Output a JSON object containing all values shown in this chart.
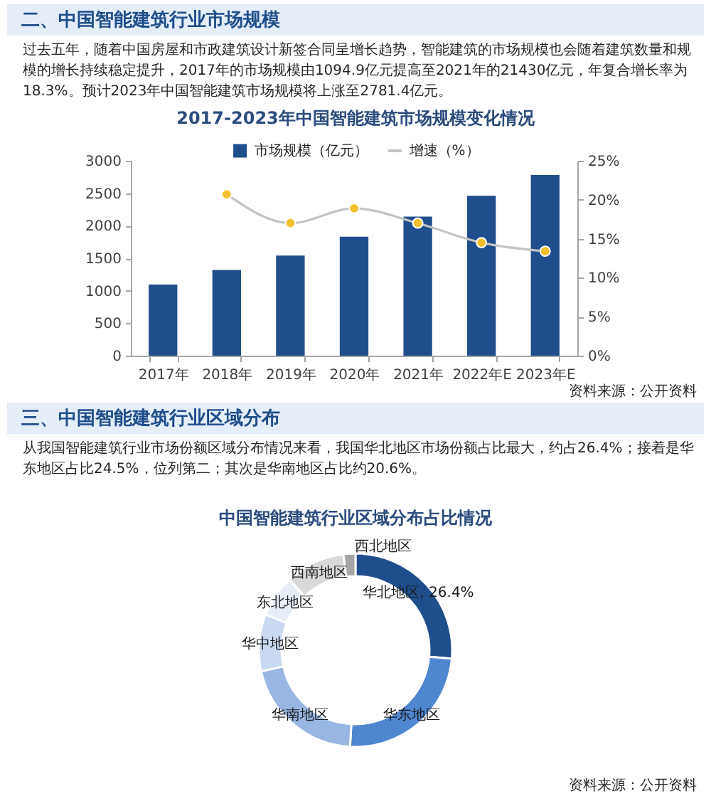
{
  "chart_data": [
    {
      "type": "other",
      "title": "二、中国智能建筑行业市场规模",
      "annotations": [
        "过去五年，随着中国房屋和市政建筑设计新签合同呈增长趋势，智能建筑的市场规模也会随着建筑数量和规模的增长持续稳定提升，2017年的市场规模由1094.9亿元提高至2021年的21430亿元，年复合增长率为18.3%。预计2023年中国智能建筑市场规模将上涨至2781.4亿元。"
      ]
    },
    {
      "type": "bar",
      "title": "2017-2023年中国智能建筑市场规模变化情况",
      "categories": [
        "2017年",
        "2018年",
        "2019年",
        "2020年",
        "2021年",
        "2022年E",
        "2023年E"
      ],
      "series": [
        {
          "name": "市场规模（亿元）",
          "type": "bar",
          "color": "#1f4e8c",
          "values": [
            1094.9,
            1320,
            1540,
            1830,
            2140,
            2460,
            2781.4
          ]
        },
        {
          "name": "增速（%）",
          "type": "line",
          "axis": "y2",
          "color": "#c4c4c4",
          "colors": [
            "#f2c12e",
            "#f2c12e",
            "#f2c12e",
            "#f2c12e",
            "#f2c12e",
            "#f2c12e",
            "#f2c12e"
          ],
          "values": [
            null,
            20.7,
            17.0,
            18.9,
            17.0,
            14.5,
            13.4
          ]
        }
      ],
      "ylim": [
        0,
        3000
      ],
      "yticks": [
        0,
        500,
        1000,
        1500,
        2000,
        2500,
        3000
      ],
      "y2lim": [
        0,
        25
      ],
      "y2ticks": [
        {
          "value": 0,
          "label": "0%"
        },
        {
          "value": 5,
          "label": "5%"
        },
        {
          "value": 10,
          "label": "10%"
        },
        {
          "value": 15,
          "label": "15%"
        },
        {
          "value": 20,
          "label": "20%"
        },
        {
          "value": 25,
          "label": "25%"
        }
      ],
      "grid": false,
      "legend": "top",
      "marker": "circle",
      "line_style": "solid",
      "annotations": [
        "资料来源：公开资料"
      ]
    },
    {
      "type": "other",
      "title": "三、中国智能建筑行业区域分布",
      "annotations": [
        "从我国智能建筑行业市场份额区域分布情况来看，我国华北地区市场份额占比最大，约占26.4%；接着是华东地区占比24.5%，位列第二；其次是华南地区占比约20.6%。"
      ]
    },
    {
      "type": "donut",
      "title": "中国智能建筑行业区域分布占比情况",
      "categories": [
        "华北地区",
        "华东地区",
        "华南地区",
        "华中地区",
        "东北地区",
        "西南地区",
        "西北地区"
      ],
      "values": [
        26.4,
        24.5,
        20.6,
        9.5,
        7,
        10,
        2
      ],
      "colors": [
        "#1f4e8c",
        "#4f86d0",
        "#98b6e2",
        "#c8d9f1",
        "#e6edf7",
        "#d9d9d9",
        "#a6a6a6"
      ],
      "value_labels": [
        "26.4%",
        null,
        null,
        null,
        null,
        null,
        null
      ],
      "annotations": [
        "资料来源：公开资料"
      ]
    }
  ]
}
